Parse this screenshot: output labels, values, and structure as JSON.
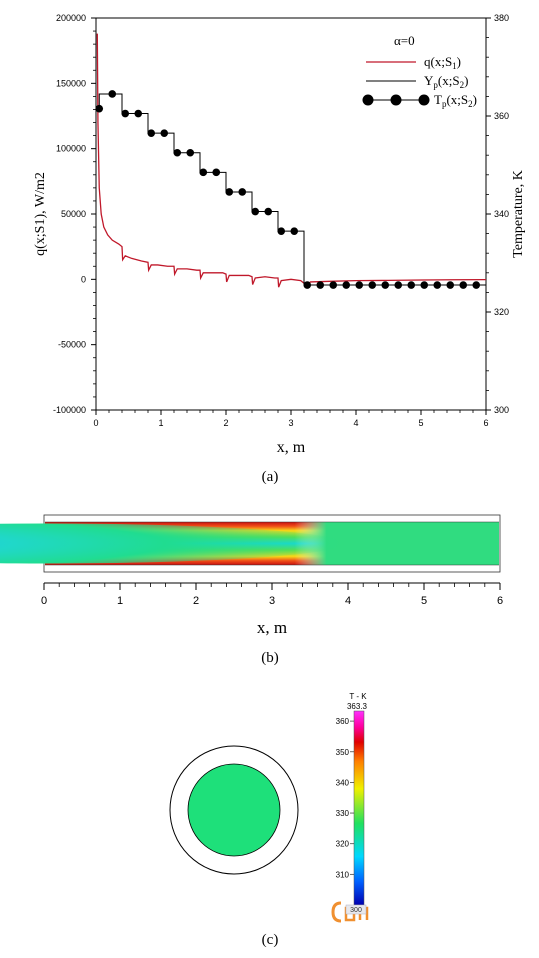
{
  "panel_a": {
    "caption": "(a)",
    "legend": {
      "title": "α=0",
      "q": {
        "main": "q(x;S",
        "sub": "1",
        "tail": ")"
      },
      "yp": {
        "main": "Y",
        "sub": "p",
        "mid": "(x;S",
        "sub2": "2",
        "tail": ")"
      },
      "tp": {
        "main": "T",
        "sub": "p",
        "mid": "(x;S",
        "sub2": "2",
        "tail": ")"
      }
    },
    "colors": {
      "q": "#c0182a",
      "yp": "#000000",
      "tp": "#000000"
    }
  },
  "panel_b": {
    "caption": "(b)",
    "xlabel": "x, m",
    "ticks": [
      "0",
      "1",
      "2",
      "3",
      "4",
      "5",
      "6"
    ]
  },
  "panel_c": {
    "caption": "(c)",
    "colorbar_title": "T - K",
    "colorbar_max": "363.3",
    "colorbar_min": "300",
    "colorbar_ticks": [
      "360",
      "350",
      "340",
      "330",
      "320",
      "310",
      "300"
    ],
    "core_color": "#1ee07a"
  },
  "chart_data": {
    "type": "line",
    "xlabel": "x, m",
    "ylabel_left": "q(x;S1), W/m2",
    "ylabel_right": "Temperature, K",
    "xlim": [
      0,
      6
    ],
    "ylim_left": [
      -100000,
      200000
    ],
    "ylim_right": [
      300,
      380
    ],
    "x_ticks": [
      "0",
      "1",
      "2",
      "3",
      "4",
      "5",
      "6"
    ],
    "y_left_ticks": [
      "200000",
      "150000",
      "100000",
      "50000",
      "0",
      "-50000",
      "-100000"
    ],
    "y_right_ticks": [
      "380",
      "360",
      "340",
      "320",
      "300"
    ],
    "grid": false,
    "legend_position": "top-right",
    "series": [
      {
        "name": "q(x;S1)",
        "axis": "left",
        "x": [
          0.02,
          0.03,
          0.05,
          0.08,
          0.12,
          0.18,
          0.25,
          0.35,
          0.4,
          0.41,
          0.45,
          0.55,
          0.7,
          0.8,
          0.81,
          0.85,
          0.95,
          1.1,
          1.2,
          1.21,
          1.25,
          1.4,
          1.55,
          1.6,
          1.61,
          1.65,
          1.8,
          1.95,
          2.0,
          2.01,
          2.05,
          2.2,
          2.35,
          2.4,
          2.41,
          2.45,
          2.6,
          2.75,
          2.8,
          2.81,
          2.85,
          3.0,
          3.15,
          3.2,
          3.22,
          3.3,
          3.6,
          4.0,
          4.5,
          5.0,
          5.5,
          6.0
        ],
        "y": [
          188000,
          120000,
          70000,
          50000,
          40000,
          34000,
          30000,
          27000,
          25000,
          15000,
          18000,
          16000,
          14000,
          13000,
          7000,
          11000,
          11000,
          10000,
          10000,
          4000,
          8000,
          8000,
          7000,
          7000,
          1000,
          5000,
          5000,
          5000,
          4000,
          -2000,
          3000,
          3000,
          3000,
          2000,
          -4000,
          1000,
          2000,
          1000,
          1000,
          -6000,
          -1000,
          0,
          -1000,
          -3000,
          -5000,
          -2000,
          -1500,
          -1000,
          -800,
          -500,
          -300,
          -200
        ]
      },
      {
        "name": "Yp(x;S2)",
        "axis": "right",
        "x": [
          0.0,
          0.05,
          0.05,
          0.4,
          0.4,
          0.8,
          0.8,
          1.2,
          1.2,
          1.6,
          1.6,
          2.0,
          2.0,
          2.4,
          2.4,
          2.8,
          2.8,
          3.2,
          3.2,
          6.0
        ],
        "y": [
          361.5,
          361.5,
          364.5,
          364.5,
          360.5,
          360.5,
          356.5,
          356.5,
          352.5,
          352.5,
          348.5,
          348.5,
          344.5,
          344.5,
          340.5,
          340.5,
          336.5,
          336.5,
          325.5,
          325.5
        ]
      },
      {
        "name": "Tp(x;S2)",
        "axis": "right",
        "x": [
          0.05,
          0.25,
          0.45,
          0.65,
          0.85,
          1.05,
          1.25,
          1.45,
          1.65,
          1.85,
          2.05,
          2.25,
          2.45,
          2.65,
          2.85,
          3.05,
          3.25,
          3.45,
          3.65,
          3.85,
          4.05,
          4.25,
          4.45,
          4.65,
          4.85,
          5.05,
          5.25,
          5.45,
          5.65,
          5.85
        ],
        "y": [
          361.5,
          364.5,
          360.5,
          360.5,
          356.5,
          356.5,
          352.5,
          352.5,
          348.5,
          348.5,
          344.5,
          344.5,
          340.5,
          340.5,
          336.5,
          336.5,
          325.5,
          325.5,
          325.5,
          325.5,
          325.5,
          325.5,
          325.5,
          325.5,
          325.5,
          325.5,
          325.5,
          325.5,
          325.5,
          325.5
        ]
      }
    ]
  }
}
